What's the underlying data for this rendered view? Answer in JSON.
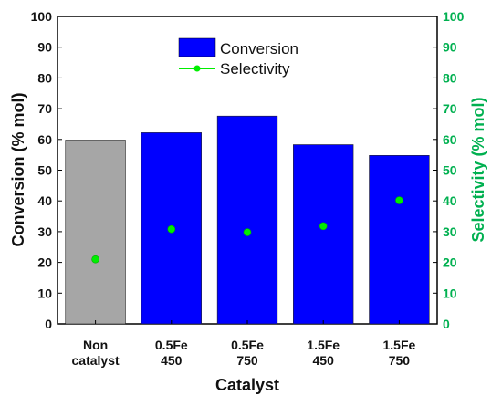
{
  "chart_data": {
    "type": "bar",
    "categories": [
      [
        "Non",
        "catalyst"
      ],
      [
        "0.5Fe",
        "450"
      ],
      [
        "0.5Fe",
        "750"
      ],
      [
        "1.5Fe",
        "450"
      ],
      [
        "1.5Fe",
        "750"
      ]
    ],
    "series": [
      {
        "name": "Conversion",
        "type": "bar",
        "axis": "left",
        "values": [
          59.8,
          62.2,
          67.6,
          58.3,
          54.8
        ],
        "colors": [
          "#a6a6a6",
          "#0000ff",
          "#0000ff",
          "#0000ff",
          "#0000ff"
        ]
      },
      {
        "name": "Selectivity",
        "type": "scatter",
        "axis": "right",
        "values": [
          21,
          30.8,
          29.8,
          31.8,
          40.2
        ],
        "color": "#00ee00"
      }
    ],
    "xlabel": "Catalyst",
    "ylabel": "Conversion (% mol)",
    "y2label": "Selectivity (% mol)",
    "ylim": [
      0,
      100
    ],
    "y2lim": [
      0,
      100
    ],
    "yticks": [
      0,
      10,
      20,
      30,
      40,
      50,
      60,
      70,
      80,
      90,
      100
    ],
    "y2ticks": [
      0,
      10,
      20,
      30,
      40,
      50,
      60,
      70,
      80,
      90,
      100
    ],
    "legend": {
      "position": "top-center",
      "entries": [
        "Conversion",
        "Selectivity"
      ]
    },
    "grid": false,
    "colors": {
      "right_axis": "#00b050",
      "axis": "#000000"
    }
  }
}
